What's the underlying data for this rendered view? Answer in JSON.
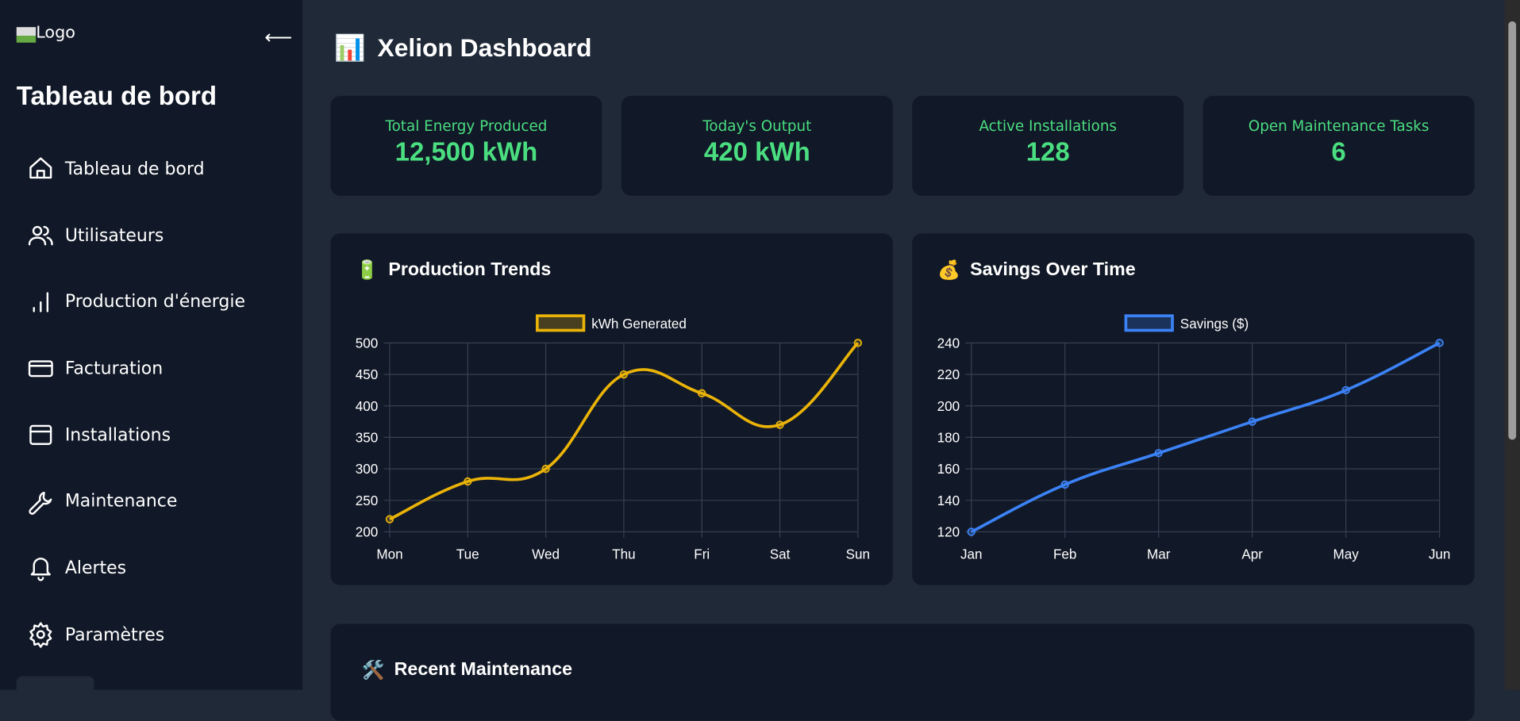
{
  "sidebar": {
    "logo_alt": "Logo",
    "collapse_icon": "arrow-left-icon",
    "title": "Tableau de bord",
    "items": [
      {
        "label": "Tableau de bord",
        "icon": "home-icon"
      },
      {
        "label": "Utilisateurs",
        "icon": "users-icon"
      },
      {
        "label": "Production d'énergie",
        "icon": "bar-chart-icon"
      },
      {
        "label": "Facturation",
        "icon": "credit-card-icon"
      },
      {
        "label": "Installations",
        "icon": "panel-icon"
      },
      {
        "label": "Maintenance",
        "icon": "wrench-icon"
      },
      {
        "label": "Alertes",
        "icon": "bell-icon"
      },
      {
        "label": "Paramètres",
        "icon": "gear-icon"
      }
    ]
  },
  "header": {
    "emoji": "📊",
    "title": "Xelion Dashboard"
  },
  "stats": [
    {
      "label": "Total Energy Produced",
      "value": "12,500 kWh"
    },
    {
      "label": "Today's Output",
      "value": "420 kWh"
    },
    {
      "label": "Active Installations",
      "value": "128"
    },
    {
      "label": "Open Maintenance Tasks",
      "value": "6"
    }
  ],
  "colors": {
    "sidebar_bg": "#111827",
    "main_bg": "#1f2937",
    "accent_green": "#4ade80",
    "production": "#eab308",
    "savings": "#3b82f6"
  },
  "chart_data": [
    {
      "type": "line",
      "emoji": "🔋",
      "title": "Production Trends",
      "categories": [
        "Mon",
        "Tue",
        "Wed",
        "Thu",
        "Fri",
        "Sat",
        "Sun"
      ],
      "series": [
        {
          "name": "kWh Generated",
          "values": [
            220,
            280,
            300,
            450,
            420,
            370,
            500
          ],
          "color": "#eab308"
        }
      ],
      "ylim": [
        200,
        500
      ],
      "yticks": [
        200,
        250,
        300,
        350,
        400,
        450,
        500
      ],
      "grid": true,
      "legend": "top"
    },
    {
      "type": "line",
      "emoji": "💰",
      "title": "Savings Over Time",
      "categories": [
        "Jan",
        "Feb",
        "Mar",
        "Apr",
        "May",
        "Jun"
      ],
      "series": [
        {
          "name": "Savings ($)",
          "values": [
            120,
            150,
            170,
            190,
            210,
            240
          ],
          "color": "#3b82f6"
        }
      ],
      "ylim": [
        120,
        240
      ],
      "yticks": [
        120,
        140,
        160,
        180,
        200,
        220,
        240
      ],
      "grid": true,
      "legend": "top"
    }
  ],
  "maintenance": {
    "emoji": "🛠️",
    "title": "Recent Maintenance"
  }
}
